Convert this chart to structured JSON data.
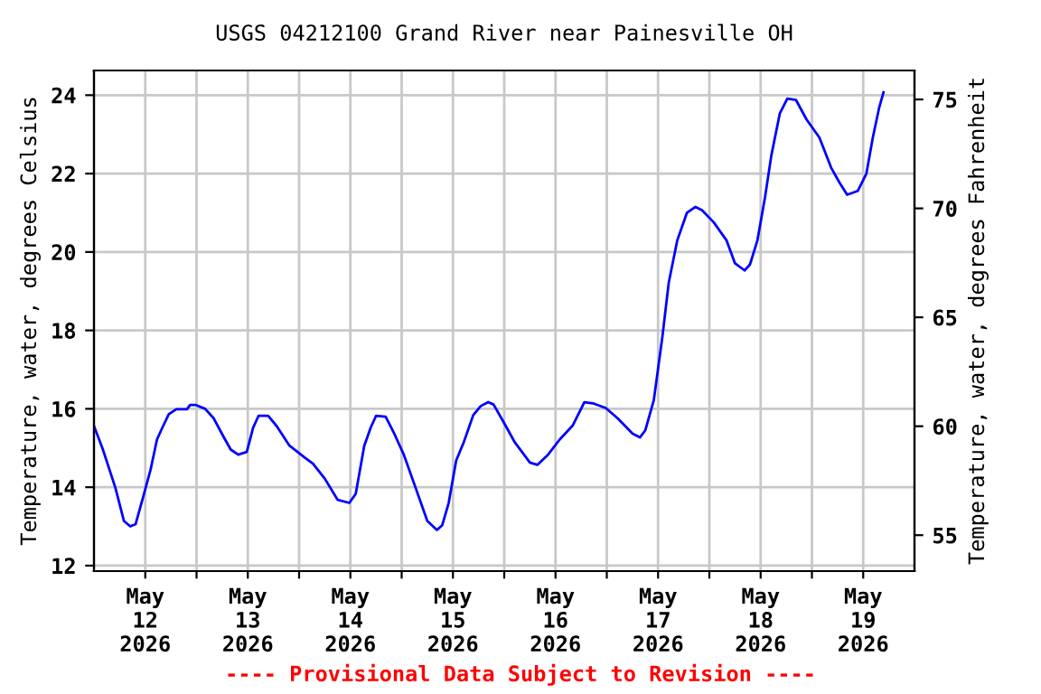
{
  "chart_data": {
    "type": "line",
    "title": "USGS 04212100 Grand River near Painesville OH",
    "ylabel": "Temperature, water, degrees Celsius",
    "y2label": "Temperature, water, degrees Fahrenheit",
    "annotations": [
      "---- Provisional Data Subject to Revision ----"
    ],
    "series": [
      {
        "color": "#0000ff",
        "x": [
          "2026-05-12T00:00",
          "2026-05-12T02:00",
          "2026-05-12T05:00",
          "2026-05-12T07:00",
          "2026-05-12T08:30",
          "2026-05-12T09:45",
          "2026-05-12T11:30",
          "2026-05-12T13:15",
          "2026-05-12T14:45",
          "2026-05-12T16:00",
          "2026-05-12T17:30",
          "2026-05-12T19:15",
          "2026-05-12T21:45",
          "2026-05-12T22:30",
          "2026-05-12T23:45",
          "2026-05-13T02:00",
          "2026-05-13T04:00",
          "2026-05-13T06:15",
          "2026-05-13T08:00",
          "2026-05-13T09:45",
          "2026-05-13T11:45",
          "2026-05-13T13:15",
          "2026-05-13T14:30",
          "2026-05-13T16:45",
          "2026-05-13T18:45",
          "2026-05-13T21:45",
          "2026-05-14T01:15",
          "2026-05-14T03:15",
          "2026-05-14T06:00",
          "2026-05-14T09:00",
          "2026-05-14T11:45",
          "2026-05-14T13:15",
          "2026-05-14T15:15",
          "2026-05-14T16:45",
          "2026-05-14T18:00",
          "2026-05-14T20:15",
          "2026-05-14T22:15",
          "2026-05-15T00:30",
          "2026-05-15T03:15",
          "2026-05-15T06:00",
          "2026-05-15T08:15",
          "2026-05-15T09:30",
          "2026-05-15T11:00",
          "2026-05-15T12:45",
          "2026-05-15T14:30",
          "2026-05-15T16:45",
          "2026-05-15T18:30",
          "2026-05-15T20:15",
          "2026-05-15T21:30",
          "2026-05-15T23:45",
          "2026-05-16T02:30",
          "2026-05-16T06:00",
          "2026-05-16T07:45",
          "2026-05-16T10:15",
          "2026-05-16T13:00",
          "2026-05-16T16:00",
          "2026-05-16T18:45",
          "2026-05-16T20:45",
          "2026-05-16T23:45",
          "2026-05-17T02:30",
          "2026-05-17T06:00",
          "2026-05-17T07:45",
          "2026-05-17T09:00",
          "2026-05-17T11:00",
          "2026-05-17T13:00",
          "2026-05-17T14:30",
          "2026-05-17T16:30",
          "2026-05-17T18:45",
          "2026-05-17T20:45",
          "2026-05-17T22:15",
          "2026-05-18T01:00",
          "2026-05-18T04:00",
          "2026-05-18T06:00",
          "2026-05-18T08:15",
          "2026-05-18T09:30",
          "2026-05-18T11:15",
          "2026-05-18T13:00",
          "2026-05-18T14:30",
          "2026-05-18T16:30",
          "2026-05-18T18:15",
          "2026-05-18T20:15",
          "2026-05-18T22:45",
          "2026-05-19T01:45",
          "2026-05-19T04:30",
          "2026-05-19T06:30",
          "2026-05-19T08:15",
          "2026-05-19T10:45",
          "2026-05-19T12:45",
          "2026-05-19T14:15",
          "2026-05-19T15:45",
          "2026-05-19T16:45"
        ],
        "values": [
          15.56,
          14.99,
          13.99,
          13.14,
          13.0,
          13.06,
          13.75,
          14.45,
          15.22,
          15.52,
          15.86,
          15.99,
          15.99,
          16.1,
          16.1,
          16.0,
          15.76,
          15.3,
          14.96,
          14.83,
          14.9,
          15.52,
          15.82,
          15.82,
          15.56,
          15.06,
          14.76,
          14.6,
          14.22,
          13.68,
          13.6,
          13.83,
          15.06,
          15.52,
          15.82,
          15.8,
          15.37,
          14.83,
          13.99,
          13.14,
          12.91,
          13.03,
          13.6,
          14.68,
          15.14,
          15.84,
          16.07,
          16.17,
          16.11,
          15.68,
          15.14,
          14.63,
          14.57,
          14.83,
          15.22,
          15.57,
          16.17,
          16.14,
          16.02,
          15.76,
          15.37,
          15.27,
          15.45,
          16.22,
          17.83,
          19.22,
          20.3,
          21.0,
          21.15,
          21.07,
          20.76,
          20.3,
          19.71,
          19.53,
          19.68,
          20.3,
          21.38,
          22.46,
          23.54,
          23.91,
          23.88,
          23.38,
          22.92,
          22.15,
          21.76,
          21.46,
          21.56,
          22.0,
          22.92,
          23.69,
          24.07
        ]
      }
    ],
    "xlim": [
      "2026-05-12T00:00",
      "2026-05-20T00:00"
    ],
    "xticks": [
      {
        "value": "2026-05-12T12:00",
        "label": "May\n12\n2026"
      },
      {
        "value": "2026-05-13T00:00",
        "label": null
      },
      {
        "value": "2026-05-13T12:00",
        "label": "May\n13\n2026"
      },
      {
        "value": "2026-05-14T00:00",
        "label": null
      },
      {
        "value": "2026-05-14T12:00",
        "label": "May\n14\n2026"
      },
      {
        "value": "2026-05-15T00:00",
        "label": null
      },
      {
        "value": "2026-05-15T12:00",
        "label": "May\n15\n2026"
      },
      {
        "value": "2026-05-16T00:00",
        "label": null
      },
      {
        "value": "2026-05-16T12:00",
        "label": "May\n16\n2026"
      },
      {
        "value": "2026-05-17T00:00",
        "label": null
      },
      {
        "value": "2026-05-17T12:00",
        "label": "May\n17\n2026"
      },
      {
        "value": "2026-05-18T00:00",
        "label": null
      },
      {
        "value": "2026-05-18T12:00",
        "label": "May\n18\n2026"
      },
      {
        "value": "2026-05-19T00:00",
        "label": null
      },
      {
        "value": "2026-05-19T12:00",
        "label": "May\n19\n2026"
      }
    ],
    "ylim": [
      11.86,
      24.63
    ],
    "yticks": [
      12,
      14,
      16,
      18,
      20,
      22,
      24
    ],
    "y2lim": [
      53.35,
      76.33
    ],
    "y2ticks": [
      55,
      60,
      65,
      70,
      75
    ],
    "grid": true,
    "legend": false
  }
}
